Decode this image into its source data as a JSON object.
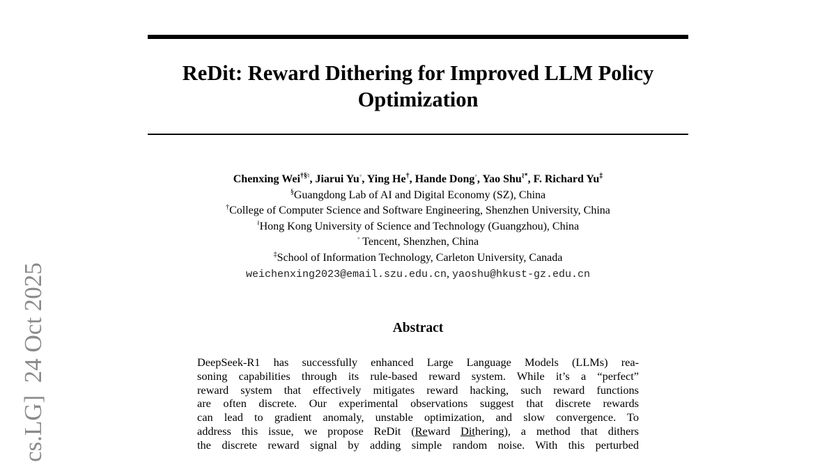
{
  "arxiv_stamp": "cs.LG]  24 Oct 2025",
  "title": {
    "line1": "ReDit: Reward Dithering for Improved LLM Policy",
    "line2": "Optimization"
  },
  "authors": [
    {
      "name": "Chenxing Wei",
      "marks": "†§♮"
    },
    {
      "name": "Jiarui Yu",
      "marks": "◦"
    },
    {
      "name": "Ying He",
      "marks": "†"
    },
    {
      "name": "Hande Dong",
      "marks": "◦"
    },
    {
      "name": "Yao Shu",
      "marks": "≀*"
    },
    {
      "name": "F. Richard Yu",
      "marks": "‡"
    }
  ],
  "affiliations": [
    {
      "mark": "§",
      "text": "Guangdong Lab of AI and Digital Economy (SZ), China"
    },
    {
      "mark": "†",
      "text": "College of Computer Science and Software Engineering, Shenzhen University, China"
    },
    {
      "mark": "≀",
      "text": "Hong Kong University of Science and Technology (Guangzhou), China"
    },
    {
      "mark": "◦",
      "text": " Tencent, Shenzhen, China"
    },
    {
      "mark": "‡",
      "text": "School of Information Technology, Carleton University, Canada"
    }
  ],
  "emails": [
    "weichenxing2023@email.szu.edu.cn",
    "yaoshu@hkust-gz.edu.cn"
  ],
  "abstract": {
    "heading": "Abstract",
    "lines": [
      "DeepSeek-R1 has successfully enhanced Large Language Models (LLMs) rea-",
      "soning capabilities through its rule-based reward system. While it’s a “perfect”",
      "reward system that effectively mitigates reward hacking, such reward functions",
      "are often discrete. Our experimental observations suggest that discrete rewards",
      "can lead to gradient anomaly, unstable optimization, and slow convergence. To"
    ],
    "line6": {
      "pre": "address this issue, we propose ReDit (",
      "u1": "Re",
      "mid1": "ward ",
      "u2": "Dit",
      "post": "hering), a method that dithers"
    },
    "line7": "the discrete reward signal by adding simple random noise. With this perturbed"
  }
}
